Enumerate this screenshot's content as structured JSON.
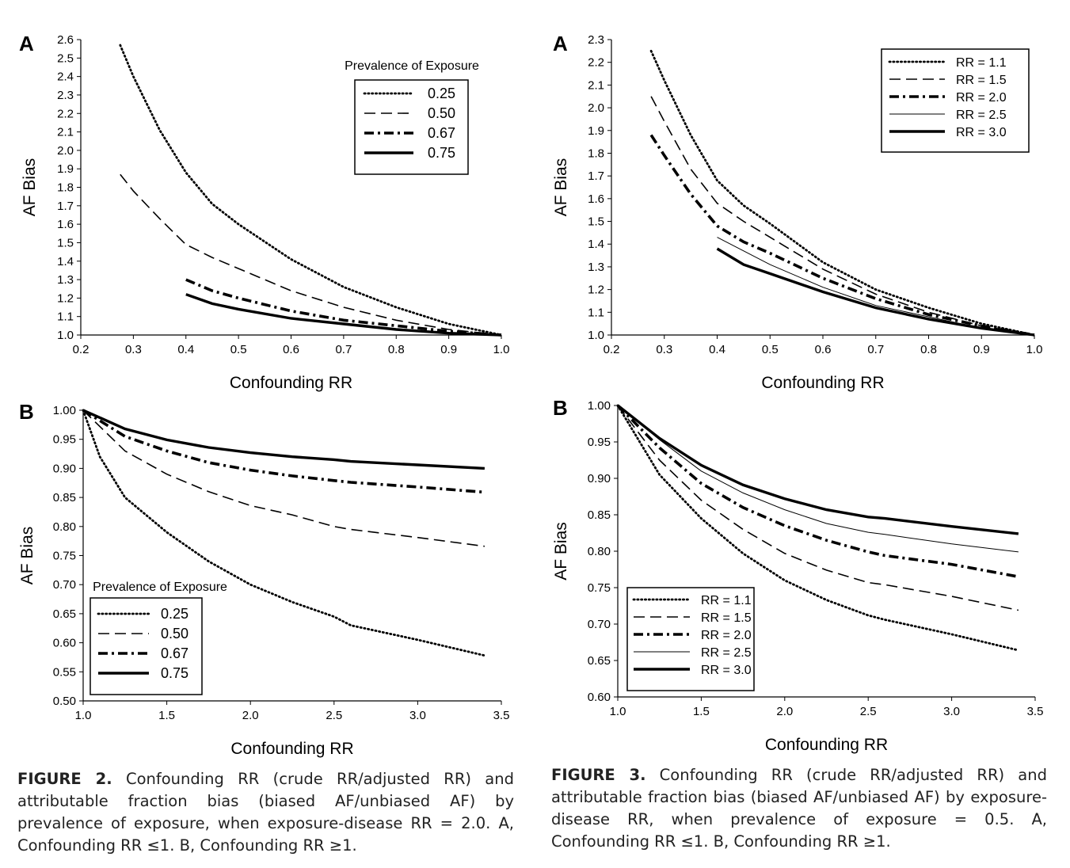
{
  "figure2": {
    "caption_label": "FIGURE 2.",
    "caption_text": "Confounding RR (crude RR/adjusted RR) and attributable fraction bias (biased AF/unbiased AF) by prevalence of exposure, when exposure-disease RR = 2.0. A, Confounding RR ≤1. B, Confounding RR ≥1."
  },
  "figure3": {
    "caption_label": "FIGURE 3.",
    "caption_text": "Confounding RR (crude RR/adjusted RR) and attributable fraction bias (biased AF/unbiased AF) by exposure-disease RR, when prevalence of exposure = 0.5. A, Confounding RR ≤1. B, Confounding RR ≥1."
  },
  "chart_data": [
    {
      "id": "fig2a",
      "panel_label": "A",
      "type": "line",
      "xlabel": "Confounding RR",
      "ylabel": "AF Bias",
      "xlim": [
        0.2,
        1.0
      ],
      "ylim": [
        1.0,
        2.6
      ],
      "xticks": [
        "0.2",
        "0.3",
        "0.4",
        "0.5",
        "0.6",
        "0.7",
        "0.8",
        "0.9",
        "1.0"
      ],
      "yticks": [
        "1.0",
        "1.1",
        "1.2",
        "1.3",
        "1.4",
        "1.5",
        "1.6",
        "1.7",
        "1.8",
        "1.9",
        "2.0",
        "2.1",
        "2.2",
        "2.3",
        "2.4",
        "2.5",
        "2.6"
      ],
      "legend_title": "Prevalence of Exposure",
      "legend_position": "top-right",
      "series": [
        {
          "name": "0.25",
          "style": "dotted",
          "x": [
            0.275,
            0.3,
            0.35,
            0.4,
            0.45,
            0.5,
            0.6,
            0.7,
            0.8,
            0.9,
            1.0
          ],
          "y": [
            2.57,
            2.4,
            2.11,
            1.88,
            1.71,
            1.6,
            1.41,
            1.26,
            1.15,
            1.06,
            1.0
          ]
        },
        {
          "name": "0.50",
          "style": "dashed",
          "x": [
            0.275,
            0.3,
            0.35,
            0.4,
            0.45,
            0.5,
            0.6,
            0.7,
            0.8,
            0.9,
            1.0
          ],
          "y": [
            1.87,
            1.78,
            1.63,
            1.49,
            1.42,
            1.36,
            1.24,
            1.15,
            1.08,
            1.03,
            1.0
          ]
        },
        {
          "name": "0.67",
          "style": "dashdot",
          "x": [
            0.4,
            0.45,
            0.5,
            0.6,
            0.7,
            0.8,
            0.9,
            1.0
          ],
          "y": [
            1.3,
            1.24,
            1.2,
            1.13,
            1.08,
            1.05,
            1.02,
            1.0
          ]
        },
        {
          "name": "0.75",
          "style": "solid-thick",
          "x": [
            0.4,
            0.45,
            0.5,
            0.6,
            0.7,
            0.8,
            0.9,
            1.0
          ],
          "y": [
            1.22,
            1.17,
            1.14,
            1.09,
            1.06,
            1.03,
            1.01,
            1.0
          ]
        }
      ]
    },
    {
      "id": "fig2b",
      "panel_label": "B",
      "type": "line",
      "xlabel": "Confounding RR",
      "ylabel": "AF Bias",
      "xlim": [
        1.0,
        3.5
      ],
      "ylim": [
        0.5,
        1.0
      ],
      "xticks": [
        "1.0",
        "1.5",
        "2.0",
        "2.5",
        "3.0",
        "3.5"
      ],
      "yticks": [
        "0.50",
        "0.55",
        "0.60",
        "0.65",
        "0.70",
        "0.75",
        "0.80",
        "0.85",
        "0.90",
        "0.95",
        "1.00"
      ],
      "legend_title": "Prevalence of Exposure",
      "legend_position": "bottom-left",
      "series": [
        {
          "name": "0.25",
          "style": "dotted",
          "x": [
            1.0,
            1.1,
            1.25,
            1.5,
            1.75,
            2.0,
            2.25,
            2.5,
            2.6,
            3.0,
            3.4
          ],
          "y": [
            1.0,
            0.92,
            0.85,
            0.79,
            0.74,
            0.7,
            0.67,
            0.645,
            0.63,
            0.605,
            0.578
          ]
        },
        {
          "name": "0.50",
          "style": "dashed",
          "x": [
            1.0,
            1.25,
            1.5,
            1.75,
            2.0,
            2.25,
            2.5,
            2.6,
            3.0,
            3.4
          ],
          "y": [
            1.0,
            0.93,
            0.89,
            0.86,
            0.836,
            0.82,
            0.8,
            0.795,
            0.781,
            0.766
          ]
        },
        {
          "name": "0.67",
          "style": "dashdot",
          "x": [
            1.0,
            1.25,
            1.5,
            1.75,
            2.0,
            2.25,
            2.5,
            2.6,
            3.0,
            3.4
          ],
          "y": [
            1.0,
            0.955,
            0.93,
            0.91,
            0.897,
            0.887,
            0.879,
            0.876,
            0.868,
            0.859
          ]
        },
        {
          "name": "0.75",
          "style": "solid-thick",
          "x": [
            1.0,
            1.25,
            1.5,
            1.75,
            2.0,
            2.25,
            2.5,
            2.6,
            3.0,
            3.4
          ],
          "y": [
            1.0,
            0.968,
            0.949,
            0.936,
            0.927,
            0.92,
            0.915,
            0.912,
            0.906,
            0.9
          ]
        }
      ]
    },
    {
      "id": "fig3a",
      "panel_label": "A",
      "type": "line",
      "xlabel": "Confounding RR",
      "ylabel": "AF Bias",
      "xlim": [
        0.2,
        1.0
      ],
      "ylim": [
        1.0,
        2.3
      ],
      "xticks": [
        "0.2",
        "0.3",
        "0.4",
        "0.5",
        "0.6",
        "0.7",
        "0.8",
        "0.9",
        "1.0"
      ],
      "yticks": [
        "1.0",
        "1.1",
        "1.2",
        "1.3",
        "1.4",
        "1.5",
        "1.6",
        "1.7",
        "1.8",
        "1.9",
        "2.0",
        "2.1",
        "2.2",
        "2.3"
      ],
      "legend_title": "",
      "legend_position": "top-right",
      "series": [
        {
          "name": "RR = 1.1",
          "style": "dotted",
          "x": [
            0.275,
            0.3,
            0.35,
            0.4,
            0.45,
            0.5,
            0.6,
            0.7,
            0.8,
            0.9,
            1.0
          ],
          "y": [
            2.25,
            2.12,
            1.88,
            1.68,
            1.57,
            1.49,
            1.32,
            1.2,
            1.12,
            1.05,
            1.0
          ]
        },
        {
          "name": "RR = 1.5",
          "style": "dashed",
          "x": [
            0.275,
            0.3,
            0.35,
            0.4,
            0.45,
            0.5,
            0.6,
            0.7,
            0.8,
            0.9,
            1.0
          ],
          "y": [
            2.05,
            1.94,
            1.73,
            1.58,
            1.5,
            1.43,
            1.29,
            1.18,
            1.1,
            1.04,
            1.0
          ]
        },
        {
          "name": "RR = 2.0",
          "style": "dashdot",
          "x": [
            0.275,
            0.3,
            0.35,
            0.4,
            0.45,
            0.5,
            0.6,
            0.7,
            0.8,
            0.9,
            1.0
          ],
          "y": [
            1.88,
            1.79,
            1.62,
            1.48,
            1.41,
            1.36,
            1.25,
            1.16,
            1.09,
            1.04,
            1.0
          ]
        },
        {
          "name": "RR = 2.5",
          "style": "solid-thin",
          "x": [
            0.4,
            0.45,
            0.5,
            0.6,
            0.7,
            0.8,
            0.9,
            1.0
          ],
          "y": [
            1.43,
            1.37,
            1.31,
            1.21,
            1.13,
            1.08,
            1.03,
            1.0
          ]
        },
        {
          "name": "RR = 3.0",
          "style": "solid-thick",
          "x": [
            0.4,
            0.45,
            0.5,
            0.6,
            0.7,
            0.8,
            0.9,
            1.0
          ],
          "y": [
            1.38,
            1.31,
            1.27,
            1.19,
            1.12,
            1.07,
            1.03,
            1.0
          ]
        }
      ]
    },
    {
      "id": "fig3b",
      "panel_label": "B",
      "type": "line",
      "xlabel": "Confounding RR",
      "ylabel": "AF Bias",
      "xlim": [
        1.0,
        3.5
      ],
      "ylim": [
        0.6,
        1.0
      ],
      "xticks": [
        "1.0",
        "1.5",
        "2.0",
        "2.5",
        "3.0",
        "3.5"
      ],
      "yticks": [
        "0.60",
        "0.65",
        "0.70",
        "0.75",
        "0.80",
        "0.85",
        "0.90",
        "0.95",
        "1.00"
      ],
      "legend_title": "",
      "legend_position": "bottom-left",
      "series": [
        {
          "name": "RR = 1.1",
          "style": "dotted",
          "x": [
            1.0,
            1.25,
            1.5,
            1.75,
            2.0,
            2.25,
            2.5,
            2.6,
            3.0,
            3.4
          ],
          "y": [
            1.0,
            0.905,
            0.845,
            0.797,
            0.76,
            0.733,
            0.712,
            0.706,
            0.686,
            0.664
          ]
        },
        {
          "name": "RR = 1.5",
          "style": "dashed",
          "x": [
            1.0,
            1.25,
            1.5,
            1.75,
            2.0,
            2.25,
            2.5,
            2.6,
            3.0,
            3.4
          ],
          "y": [
            1.0,
            0.925,
            0.87,
            0.83,
            0.797,
            0.774,
            0.757,
            0.754,
            0.738,
            0.719
          ]
        },
        {
          "name": "RR = 2.0",
          "style": "dashdot",
          "x": [
            1.0,
            1.25,
            1.5,
            1.75,
            2.0,
            2.25,
            2.5,
            2.6,
            3.0,
            3.4
          ],
          "y": [
            1.0,
            0.942,
            0.893,
            0.86,
            0.835,
            0.815,
            0.799,
            0.794,
            0.782,
            0.765
          ]
        },
        {
          "name": "RR = 2.5",
          "style": "solid-thin",
          "x": [
            1.0,
            1.25,
            1.5,
            1.75,
            2.0,
            2.25,
            2.5,
            2.6,
            3.0,
            3.4
          ],
          "y": [
            1.0,
            0.953,
            0.91,
            0.88,
            0.857,
            0.838,
            0.826,
            0.823,
            0.81,
            0.799
          ]
        },
        {
          "name": "RR = 3.0",
          "style": "solid-thick",
          "x": [
            1.0,
            1.25,
            1.5,
            1.75,
            2.0,
            2.25,
            2.5,
            2.6,
            3.0,
            3.4
          ],
          "y": [
            1.0,
            0.955,
            0.918,
            0.891,
            0.872,
            0.857,
            0.847,
            0.845,
            0.834,
            0.824
          ]
        }
      ]
    }
  ]
}
